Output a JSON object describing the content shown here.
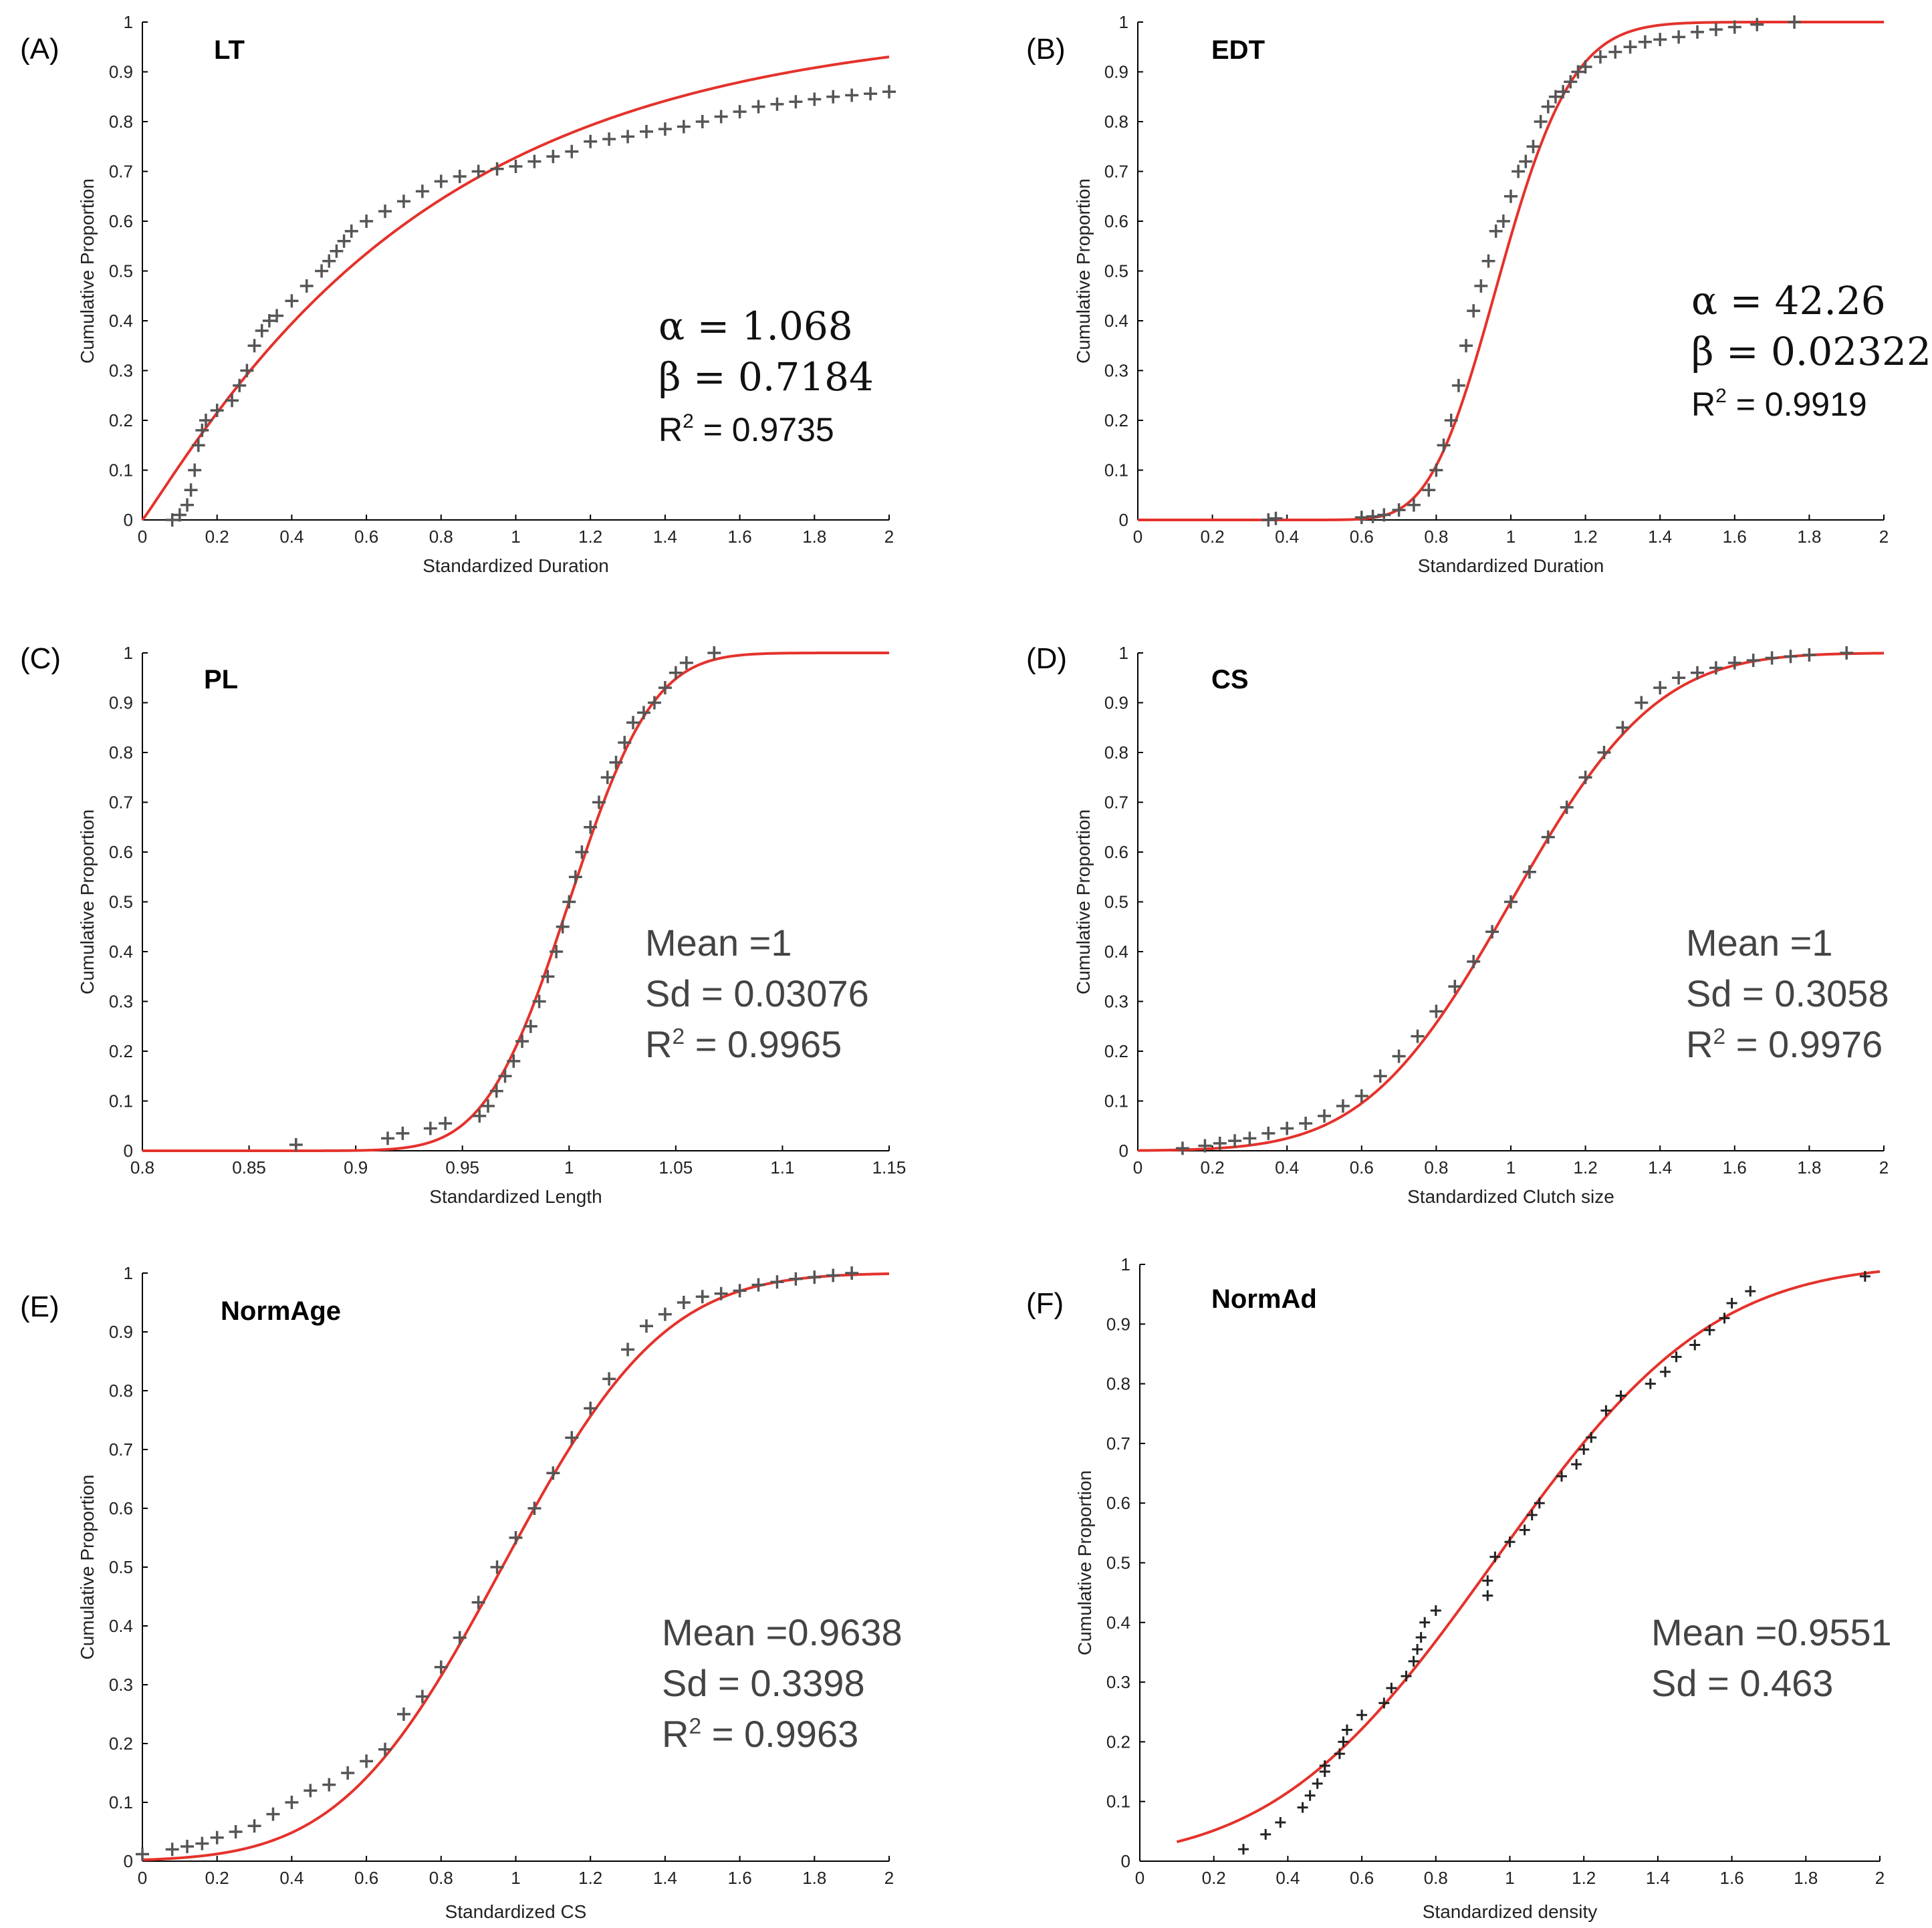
{
  "chart_data": [
    {
      "type": "scatter",
      "panel": "(A)",
      "title": "LT",
      "xlabel": "Standardized Duration",
      "ylabel": "Cumulative Proportion",
      "xlim": [
        0,
        2
      ],
      "ylim": [
        0,
        1
      ],
      "xticks": [
        "0",
        "0.2",
        "0.4",
        "0.6",
        "0.8",
        "1",
        "1.2",
        "1.4",
        "1.6",
        "1.8",
        "2"
      ],
      "yticks": [
        "0",
        "0.1",
        "0.2",
        "0.3",
        "0.4",
        "0.5",
        "0.6",
        "0.7",
        "0.8",
        "0.9",
        "1"
      ],
      "fit": {
        "dist": "gamma",
        "alpha": 1.068,
        "beta": 0.7184
      },
      "series": [
        {
          "name": "empirical",
          "x": [
            0.08,
            0.1,
            0.12,
            0.13,
            0.14,
            0.15,
            0.16,
            0.17,
            0.2,
            0.24,
            0.26,
            0.28,
            0.3,
            0.32,
            0.34,
            0.36,
            0.4,
            0.44,
            0.48,
            0.5,
            0.52,
            0.54,
            0.56,
            0.6,
            0.65,
            0.7,
            0.75,
            0.8,
            0.85,
            0.9,
            0.95,
            1.0,
            1.05,
            1.1,
            1.15,
            1.2,
            1.25,
            1.3,
            1.35,
            1.4,
            1.45,
            1.5,
            1.55,
            1.6,
            1.65,
            1.7,
            1.75,
            1.8,
            1.85,
            1.9,
            1.95,
            2.0
          ],
          "y": [
            0.0,
            0.01,
            0.03,
            0.06,
            0.1,
            0.15,
            0.18,
            0.2,
            0.22,
            0.24,
            0.27,
            0.3,
            0.35,
            0.38,
            0.4,
            0.41,
            0.44,
            0.47,
            0.5,
            0.52,
            0.54,
            0.56,
            0.58,
            0.6,
            0.62,
            0.64,
            0.66,
            0.68,
            0.69,
            0.7,
            0.705,
            0.71,
            0.72,
            0.73,
            0.74,
            0.76,
            0.765,
            0.77,
            0.78,
            0.785,
            0.79,
            0.8,
            0.81,
            0.82,
            0.83,
            0.835,
            0.84,
            0.845,
            0.85,
            0.853,
            0.856,
            0.86
          ]
        }
      ],
      "stats": {
        "alpha_label": "α = 1.068",
        "beta_label": "β = 0.7184",
        "r2_label": "R",
        "r2_exp": "2",
        "r2_value": " = 0.9735"
      }
    },
    {
      "type": "scatter",
      "panel": "(B)",
      "title": "EDT",
      "xlabel": "Standardized Duration",
      "ylabel": "Cumulative Proportion",
      "xlim": [
        0,
        2
      ],
      "ylim": [
        0,
        1
      ],
      "xticks": [
        "0",
        "0.2",
        "0.4",
        "0.6",
        "0.8",
        "1",
        "1.2",
        "1.4",
        "1.6",
        "1.8",
        "2"
      ],
      "yticks": [
        "0",
        "0.1",
        "0.2",
        "0.3",
        "0.4",
        "0.5",
        "0.6",
        "0.7",
        "0.8",
        "0.9",
        "1"
      ],
      "fit": {
        "dist": "gamma",
        "alpha": 42.26,
        "beta": 0.02322
      },
      "series": [
        {
          "name": "empirical",
          "x": [
            0.35,
            0.37,
            0.6,
            0.63,
            0.66,
            0.7,
            0.74,
            0.78,
            0.8,
            0.82,
            0.84,
            0.86,
            0.88,
            0.9,
            0.92,
            0.94,
            0.96,
            0.98,
            1.0,
            1.02,
            1.04,
            1.06,
            1.08,
            1.1,
            1.12,
            1.14,
            1.16,
            1.18,
            1.2,
            1.24,
            1.28,
            1.32,
            1.36,
            1.4,
            1.45,
            1.5,
            1.55,
            1.6,
            1.66,
            1.76
          ],
          "y": [
            0.0,
            0.003,
            0.005,
            0.007,
            0.01,
            0.02,
            0.03,
            0.06,
            0.1,
            0.15,
            0.2,
            0.27,
            0.35,
            0.42,
            0.47,
            0.52,
            0.58,
            0.6,
            0.65,
            0.7,
            0.72,
            0.75,
            0.8,
            0.83,
            0.85,
            0.86,
            0.88,
            0.9,
            0.91,
            0.93,
            0.94,
            0.95,
            0.96,
            0.965,
            0.97,
            0.98,
            0.985,
            0.99,
            0.995,
            1.0
          ]
        }
      ],
      "stats": {
        "alpha_label": "α = 42.26",
        "beta_label": "β = 0.02322",
        "r2_label": "R",
        "r2_exp": "2",
        "r2_value": " = 0.9919"
      }
    },
    {
      "type": "scatter",
      "panel": "(C)",
      "title": "PL",
      "xlabel": "Standardized Length",
      "ylabel": "Cumulative Proportion",
      "xlim": [
        0.8,
        1.15
      ],
      "ylim": [
        0,
        1
      ],
      "xticks": [
        "0.8",
        "0.85",
        "0.9",
        "0.95",
        "1",
        "1.05",
        "1.1",
        "1.15"
      ],
      "yticks": [
        "0",
        "0.1",
        "0.2",
        "0.3",
        "0.4",
        "0.5",
        "0.6",
        "0.7",
        "0.8",
        "0.9",
        "1"
      ],
      "fit": {
        "dist": "normal",
        "mean": 1,
        "sd": 0.03076
      },
      "series": [
        {
          "name": "empirical",
          "x": [
            0.872,
            0.915,
            0.922,
            0.935,
            0.942,
            0.958,
            0.962,
            0.966,
            0.97,
            0.974,
            0.978,
            0.982,
            0.986,
            0.99,
            0.994,
            0.997,
            1.0,
            1.003,
            1.006,
            1.01,
            1.014,
            1.018,
            1.022,
            1.026,
            1.03,
            1.035,
            1.04,
            1.045,
            1.05,
            1.055,
            1.068
          ],
          "y": [
            0.012,
            0.025,
            0.035,
            0.045,
            0.055,
            0.07,
            0.09,
            0.12,
            0.15,
            0.18,
            0.22,
            0.25,
            0.3,
            0.35,
            0.4,
            0.45,
            0.5,
            0.55,
            0.6,
            0.65,
            0.7,
            0.75,
            0.78,
            0.82,
            0.86,
            0.88,
            0.9,
            0.93,
            0.96,
            0.98,
            1.0
          ]
        }
      ],
      "stats": {
        "mean_label": "Mean =1",
        "sd_label": "Sd = 0.03076",
        "r2_label": "R",
        "r2_exp": "2",
        "r2_value": " = 0.9965"
      }
    },
    {
      "type": "scatter",
      "panel": "(D)",
      "title": "CS",
      "xlabel": "Standardized Clutch size",
      "ylabel": "Cumulative Proportion",
      "xlim": [
        0,
        2
      ],
      "ylim": [
        0,
        1
      ],
      "xticks": [
        "0",
        "0.2",
        "0.4",
        "0.6",
        "0.8",
        "1",
        "1.2",
        "1.4",
        "1.6",
        "1.8",
        "2"
      ],
      "yticks": [
        "0",
        "0.1",
        "0.2",
        "0.3",
        "0.4",
        "0.5",
        "0.6",
        "0.7",
        "0.8",
        "0.9",
        "1"
      ],
      "fit": {
        "dist": "normal",
        "mean": 1,
        "sd": 0.3058
      },
      "series": [
        {
          "name": "empirical",
          "x": [
            0.12,
            0.18,
            0.22,
            0.26,
            0.3,
            0.35,
            0.4,
            0.45,
            0.5,
            0.55,
            0.6,
            0.65,
            0.7,
            0.75,
            0.8,
            0.85,
            0.9,
            0.95,
            1.0,
            1.05,
            1.1,
            1.15,
            1.2,
            1.25,
            1.3,
            1.35,
            1.4,
            1.45,
            1.5,
            1.55,
            1.6,
            1.65,
            1.7,
            1.75,
            1.8,
            1.9
          ],
          "y": [
            0.005,
            0.01,
            0.015,
            0.02,
            0.025,
            0.035,
            0.045,
            0.055,
            0.07,
            0.09,
            0.11,
            0.15,
            0.19,
            0.23,
            0.28,
            0.33,
            0.38,
            0.44,
            0.5,
            0.56,
            0.63,
            0.69,
            0.75,
            0.8,
            0.85,
            0.9,
            0.93,
            0.95,
            0.96,
            0.97,
            0.98,
            0.985,
            0.99,
            0.993,
            0.996,
            1.0
          ]
        }
      ],
      "stats": {
        "mean_label": "Mean =1",
        "sd_label": "Sd = 0.3058",
        "r2_label": "R",
        "r2_exp": "2",
        "r2_value": " = 0.9976"
      }
    },
    {
      "type": "scatter",
      "panel": "(E)",
      "title": "NormAge",
      "xlabel": "Standardized CS",
      "ylabel": "Cumulative Proportion",
      "xlim": [
        0,
        2
      ],
      "ylim": [
        0,
        1
      ],
      "xticks": [
        "0",
        "0.2",
        "0.4",
        "0.6",
        "0.8",
        "1",
        "1.2",
        "1.4",
        "1.6",
        "1.8",
        "2"
      ],
      "yticks": [
        "0",
        "0.1",
        "0.2",
        "0.3",
        "0.4",
        "0.5",
        "0.6",
        "0.7",
        "0.8",
        "0.9",
        "1"
      ],
      "fit": {
        "dist": "normal",
        "mean": 0.9638,
        "sd": 0.3398
      },
      "series": [
        {
          "name": "empirical",
          "x": [
            0.0,
            0.08,
            0.12,
            0.16,
            0.2,
            0.25,
            0.3,
            0.35,
            0.4,
            0.45,
            0.5,
            0.55,
            0.6,
            0.65,
            0.7,
            0.75,
            0.8,
            0.85,
            0.9,
            0.95,
            1.0,
            1.05,
            1.1,
            1.15,
            1.2,
            1.25,
            1.3,
            1.35,
            1.4,
            1.45,
            1.5,
            1.55,
            1.6,
            1.65,
            1.7,
            1.75,
            1.8,
            1.85,
            1.9
          ],
          "y": [
            0.012,
            0.02,
            0.025,
            0.03,
            0.04,
            0.05,
            0.06,
            0.08,
            0.1,
            0.12,
            0.13,
            0.15,
            0.17,
            0.19,
            0.25,
            0.28,
            0.33,
            0.38,
            0.44,
            0.5,
            0.55,
            0.6,
            0.66,
            0.72,
            0.77,
            0.82,
            0.87,
            0.91,
            0.93,
            0.95,
            0.96,
            0.965,
            0.97,
            0.98,
            0.985,
            0.99,
            0.993,
            0.996,
            1.0
          ]
        }
      ],
      "stats": {
        "mean_label": "Mean =0.9638",
        "sd_label": "Sd = 0.3398",
        "r2_label": "R",
        "r2_exp": "2",
        "r2_value": " = 0.9963"
      }
    },
    {
      "type": "scatter",
      "panel": "(F)",
      "title": "NormAd",
      "xlabel": "Standardized density",
      "ylabel": "Cumulative Proportion",
      "xlim": [
        0,
        2
      ],
      "ylim": [
        0,
        1
      ],
      "xticks": [
        "0",
        "0.2",
        "0.4",
        "0.6",
        "0.8",
        "1",
        "1.2",
        "1.4",
        "1.6",
        "1.8",
        "2"
      ],
      "yticks": [
        "0",
        "0.1",
        "0.2",
        "0.3",
        "0.4",
        "0.5",
        "0.6",
        "0.7",
        "0.8",
        "0.9",
        "1"
      ],
      "fit": {
        "dist": "normal",
        "mean": 0.9551,
        "sd": 0.463,
        "x_start": 0.1
      },
      "series": [
        {
          "name": "empirical",
          "x": [
            0.28,
            0.34,
            0.38,
            0.44,
            0.46,
            0.48,
            0.5,
            0.5,
            0.54,
            0.55,
            0.56,
            0.6,
            0.66,
            0.68,
            0.72,
            0.74,
            0.75,
            0.76,
            0.77,
            0.8,
            0.94,
            0.94,
            0.96,
            1.0,
            1.04,
            1.06,
            1.08,
            1.14,
            1.18,
            1.2,
            1.22,
            1.26,
            1.3,
            1.38,
            1.42,
            1.45,
            1.5,
            1.54,
            1.58,
            1.6,
            1.65,
            1.96
          ],
          "y": [
            0.02,
            0.045,
            0.065,
            0.09,
            0.11,
            0.13,
            0.15,
            0.16,
            0.18,
            0.2,
            0.22,
            0.245,
            0.265,
            0.29,
            0.31,
            0.335,
            0.355,
            0.375,
            0.4,
            0.42,
            0.445,
            0.47,
            0.51,
            0.535,
            0.555,
            0.58,
            0.6,
            0.645,
            0.665,
            0.69,
            0.71,
            0.755,
            0.78,
            0.8,
            0.82,
            0.845,
            0.865,
            0.89,
            0.91,
            0.935,
            0.955,
            0.98
          ]
        }
      ],
      "stats": {
        "mean_label": "Mean =0.9551",
        "sd_label": "Sd = 0.463"
      }
    }
  ]
}
